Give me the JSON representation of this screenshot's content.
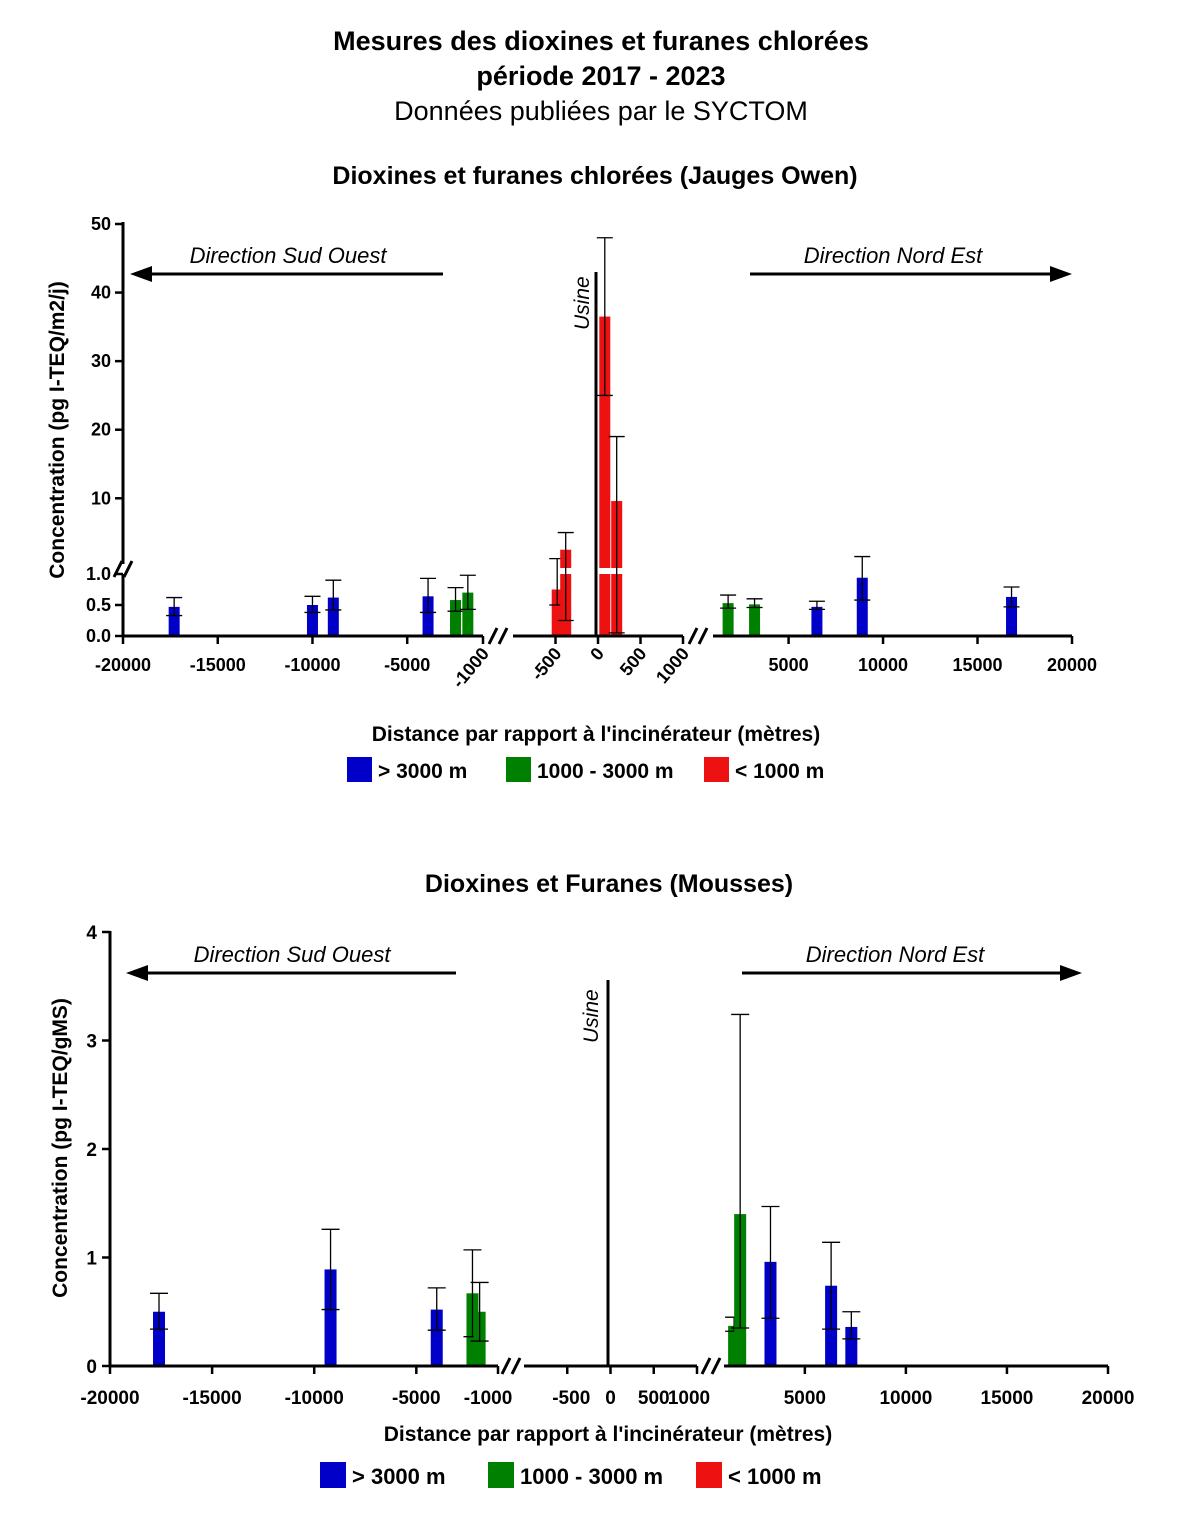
{
  "header": {
    "title_line1": "Mesures des dioxines et furanes chlorées",
    "title_line2": "période 2017 - 2023",
    "subtitle": "Données publiées par le SYCTOM"
  },
  "colors": {
    "gt3000": "#0000c8",
    "mid": "#008000",
    "lt1000": "#ee1111"
  },
  "legend": [
    {
      "label": "> 3000 m",
      "color": "#0000c8"
    },
    {
      "label": "1000 - 3000 m",
      "color": "#008000"
    },
    {
      "label": "< 1000 m",
      "color": "#ee1111"
    }
  ],
  "chart_data": [
    {
      "type": "bar",
      "title": "Dioxines et furanes chlorées (Jauges Owen)",
      "xlabel": "Distance par rapport à l'incinérateur (mètres)",
      "ylabel": "Concentration (pg I-TEQ/m2/j)",
      "direction_left": "Direction Sud Ouest",
      "direction_right": "Direction Nord Est",
      "plant_label": "Usine",
      "x_segments": [
        [
          -20000,
          -1000
        ],
        [
          -1000,
          1000
        ],
        [
          1000,
          20000
        ]
      ],
      "y_segments": [
        [
          0,
          1
        ],
        [
          1,
          50
        ]
      ],
      "x_ticks": [
        [
          "-20000",
          "-15000",
          "-10000",
          "-5000"
        ],
        [
          "-1000",
          "-500",
          "0",
          "500",
          "1000"
        ],
        [
          "5000",
          "10000",
          "15000",
          "20000"
        ]
      ],
      "y_ticks": [
        [
          "0.0",
          "0.5",
          "1.0"
        ],
        [
          "10",
          "20",
          "30",
          "40",
          "50"
        ]
      ],
      "bars": [
        {
          "x": -17300,
          "value": 0.47,
          "err_low": 0.33,
          "err_high": 0.62,
          "group": "gt3000"
        },
        {
          "x": -10000,
          "value": 0.5,
          "err_low": 0.38,
          "err_high": 0.64,
          "group": "gt3000"
        },
        {
          "x": -8900,
          "value": 0.62,
          "err_low": 0.42,
          "err_high": 0.9,
          "group": "gt3000"
        },
        {
          "x": -3900,
          "value": 0.64,
          "err_low": 0.38,
          "err_high": 0.93,
          "group": "gt3000"
        },
        {
          "x": -2450,
          "value": 0.58,
          "err_low": 0.4,
          "err_high": 0.78,
          "group": "mid"
        },
        {
          "x": -1800,
          "value": 0.7,
          "err_low": 0.43,
          "err_high": 0.98,
          "group": "mid"
        },
        {
          "x": -480,
          "value": 0.75,
          "err_low": 0.5,
          "err_high": 1.2,
          "group": "lt1000"
        },
        {
          "x": -380,
          "value": 2.5,
          "err_low": 0.25,
          "err_high": 5,
          "group": "lt1000"
        },
        {
          "x": 80,
          "value": 36.5,
          "err_low": 25,
          "err_high": 48,
          "group": "lt1000"
        },
        {
          "x": 220,
          "value": 9.6,
          "err_low": 0.05,
          "err_high": 19,
          "group": "lt1000"
        },
        {
          "x": 1800,
          "value": 0.53,
          "err_low": 0.45,
          "err_high": 0.66,
          "group": "mid"
        },
        {
          "x": 3200,
          "value": 0.51,
          "err_low": 0.46,
          "err_high": 0.6,
          "group": "mid"
        },
        {
          "x": 6500,
          "value": 0.47,
          "err_low": 0.43,
          "err_high": 0.56,
          "group": "gt3000"
        },
        {
          "x": 8900,
          "value": 0.94,
          "err_low": 0.58,
          "err_high": 1.5,
          "group": "gt3000"
        },
        {
          "x": 16800,
          "value": 0.63,
          "err_low": 0.47,
          "err_high": 0.79,
          "group": "gt3000"
        }
      ]
    },
    {
      "type": "bar",
      "title": "Dioxines et Furanes (Mousses)",
      "xlabel": "Distance par rapport à l'incinérateur (mètres)",
      "ylabel": "Concentration (pg I-TEQ/gMS)",
      "direction_left": "Direction Sud Ouest",
      "direction_right": "Direction Nord Est",
      "plant_label": "Usine",
      "x_segments": [
        [
          -20000,
          -1000
        ],
        [
          -1000,
          1000
        ],
        [
          1000,
          20000
        ]
      ],
      "y_range": [
        0,
        4
      ],
      "x_ticks": [
        [
          "-20000",
          "-15000",
          "-10000",
          "-5000"
        ],
        [
          "-1000",
          "-500",
          "0",
          "500",
          "1000"
        ],
        [
          "5000",
          "10000",
          "15000",
          "20000"
        ]
      ],
      "y_ticks": [
        "0",
        "1",
        "2",
        "3",
        "4"
      ],
      "bars": [
        {
          "x": -17600,
          "value": 0.5,
          "err_low": 0.34,
          "err_high": 0.67,
          "group": "gt3000"
        },
        {
          "x": -9200,
          "value": 0.89,
          "err_low": 0.52,
          "err_high": 1.26,
          "group": "gt3000"
        },
        {
          "x": -4000,
          "value": 0.52,
          "err_low": 0.33,
          "err_high": 0.72,
          "group": "gt3000"
        },
        {
          "x": -2250,
          "value": 0.67,
          "err_low": 0.27,
          "err_high": 1.07,
          "group": "mid"
        },
        {
          "x": -1900,
          "value": 0.5,
          "err_low": 0.23,
          "err_high": 0.77,
          "group": "mid"
        },
        {
          "x": 1500,
          "value": 0.37,
          "err_low": 0.32,
          "err_high": 0.45,
          "group": "mid"
        },
        {
          "x": 1800,
          "value": 1.4,
          "err_low": 0.35,
          "err_high": 3.24,
          "group": "mid"
        },
        {
          "x": 3300,
          "value": 0.96,
          "err_low": 0.44,
          "err_high": 1.47,
          "group": "gt3000"
        },
        {
          "x": 6300,
          "value": 0.74,
          "err_low": 0.34,
          "err_high": 1.14,
          "group": "gt3000"
        },
        {
          "x": 7300,
          "value": 0.36,
          "err_low": 0.25,
          "err_high": 0.5,
          "group": "gt3000"
        }
      ]
    }
  ]
}
